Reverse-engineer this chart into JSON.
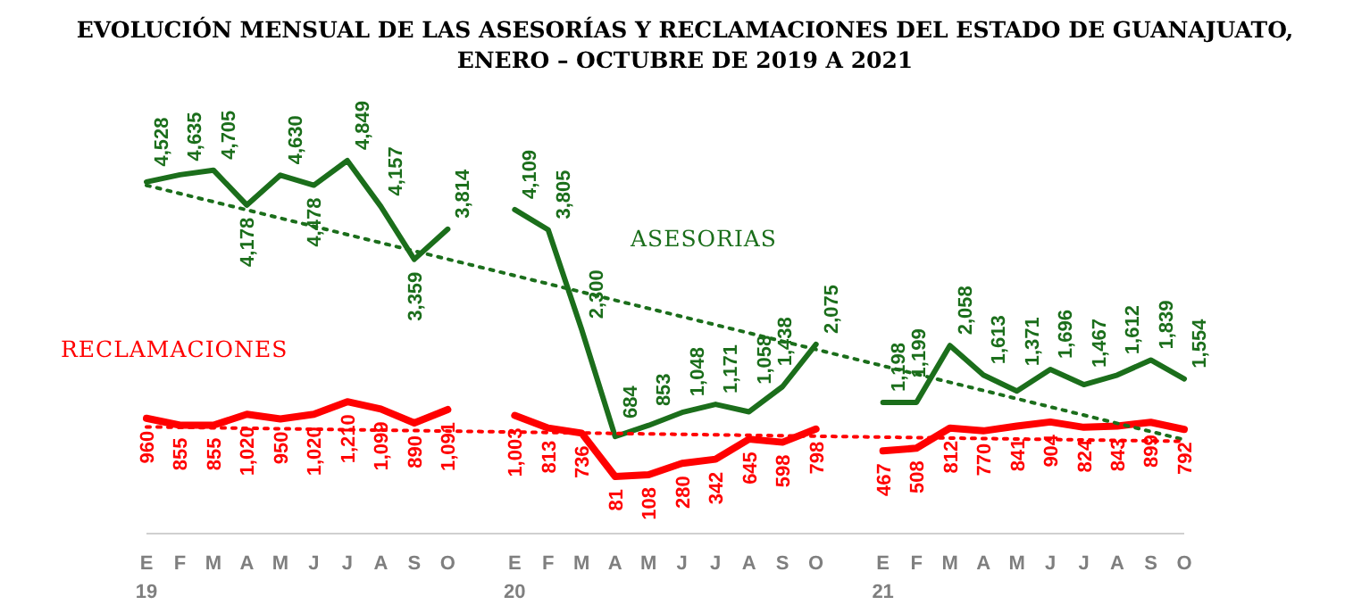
{
  "chart_data": {
    "type": "line",
    "title": "EVOLUCIÓN MENSUAL DE LAS ASESORÍAS Y RECLAMACIONES DEL ESTADO DE GUANAJUATO,\nENERO – OCTUBRE DE 2019 A 2021",
    "categories": [
      "E",
      "F",
      "M",
      "A",
      "M",
      "J",
      "J",
      "A",
      "S",
      "O",
      null,
      "E",
      "F",
      "M",
      "A",
      "M",
      "J",
      "J",
      "A",
      "S",
      "O",
      null,
      "E",
      "F",
      "M",
      "A",
      "M",
      "J",
      "J",
      "A",
      "S",
      "O"
    ],
    "series": [
      {
        "name": "ASESORIAS",
        "color": "#1b6e1b",
        "values": [
          4528,
          4635,
          4705,
          4178,
          4630,
          4478,
          4849,
          4157,
          3359,
          3814,
          null,
          4109,
          3805,
          2300,
          684,
          853,
          1048,
          1171,
          1058,
          1438,
          2075,
          null,
          1198,
          1199,
          2058,
          1613,
          1371,
          1696,
          1467,
          1612,
          1839,
          1554
        ],
        "value_labels": [
          "4,528",
          "4,635",
          "4,705",
          "4,178",
          "4,630",
          "4,478",
          "4,849",
          "4,157",
          "3,359",
          "3,814",
          null,
          "4,109",
          "3,805",
          "2,300",
          "684",
          "853",
          "1,048",
          "1,171",
          "1,058",
          "1,438",
          "2,075",
          null,
          "1,198",
          "1,199",
          "2,058",
          "1,613",
          "1,371",
          "1,696",
          "1,467",
          "1,612",
          "1,839",
          "1,554"
        ]
      },
      {
        "name": "RECLAMACIONES",
        "color": "#ff0000",
        "values": [
          960,
          855,
          855,
          1020,
          950,
          1020,
          1210,
          1099,
          890,
          1091,
          null,
          1003,
          813,
          736,
          81,
          108,
          280,
          342,
          645,
          598,
          798,
          null,
          467,
          508,
          812,
          770,
          841,
          904,
          824,
          843,
          899,
          792
        ],
        "value_labels": [
          "960",
          "855",
          "855",
          "1,020",
          "950",
          "1,020",
          "1,210",
          "1,099",
          "890",
          "1,091",
          null,
          "1,003",
          "813",
          "736",
          "81",
          "108",
          "280",
          "342",
          "645",
          "598",
          "798",
          null,
          "467",
          "508",
          "812",
          "770",
          "841",
          "904",
          "824",
          "843",
          "899",
          "792"
        ]
      },
      {
        "type": "line",
        "color": "#1b6e1b",
        "line_style": "dotted",
        "values": [
          4476,
          null,
          null,
          null,
          null,
          null,
          null,
          null,
          null,
          null,
          null,
          null,
          null,
          null,
          null,
          null,
          null,
          null,
          null,
          null,
          null,
          null,
          null,
          null,
          null,
          null,
          null,
          null,
          null,
          null,
          null,
          636
        ]
      },
      {
        "type": "line",
        "color": "#ff0000",
        "line_style": "dotted",
        "values": [
          830,
          null,
          null,
          null,
          null,
          null,
          null,
          null,
          null,
          null,
          null,
          null,
          null,
          null,
          null,
          null,
          null,
          null,
          null,
          null,
          null,
          null,
          null,
          null,
          null,
          null,
          null,
          null,
          null,
          null,
          null,
          612
        ]
      }
    ],
    "annotations": [
      "19",
      "20",
      "21"
    ],
    "marker": "none"
  }
}
